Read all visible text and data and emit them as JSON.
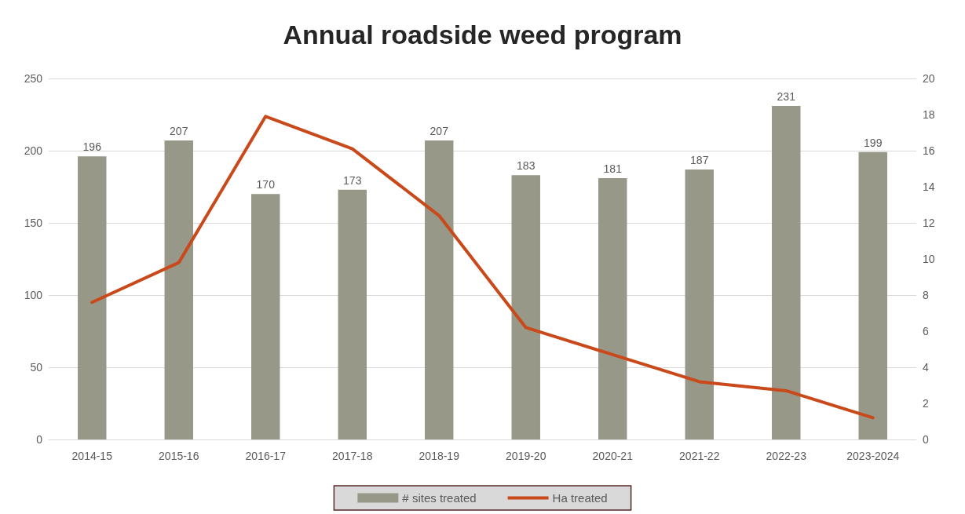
{
  "chart_data": {
    "type": "bar",
    "title": "Annual roadside weed program",
    "categories": [
      "2014-15",
      "2015-16",
      "2016-17",
      "2017-18",
      "2018-19",
      "2019-20",
      "2020-21",
      "2021-22",
      "2022-23",
      "2023-2024"
    ],
    "series": [
      {
        "name": "# sites treated",
        "color": "#979888",
        "values": [
          196,
          207,
          170,
          173,
          207,
          183,
          181,
          187,
          231,
          199
        ],
        "value_labels": [
          "196",
          "207",
          "170",
          "173",
          "207",
          "183",
          "181",
          "187",
          "231",
          "199"
        ]
      },
      {
        "name": "Ha treated",
        "type": "line",
        "axis": "y2",
        "color": "#c9491b",
        "values": [
          7.6,
          9.8,
          17.9,
          16.1,
          12.4,
          6.2,
          4.7,
          3.2,
          2.7,
          1.2
        ]
      }
    ],
    "ylim": [
      0,
      250
    ],
    "yticks": [
      0,
      50,
      100,
      150,
      200,
      250
    ],
    "y2lim": [
      0,
      20
    ],
    "y2ticks": [
      0,
      2,
      4,
      6,
      8,
      10,
      12,
      14,
      16,
      18,
      20
    ],
    "grid": "y",
    "legend": "bottom",
    "marker": "none",
    "line_style": "solid"
  }
}
